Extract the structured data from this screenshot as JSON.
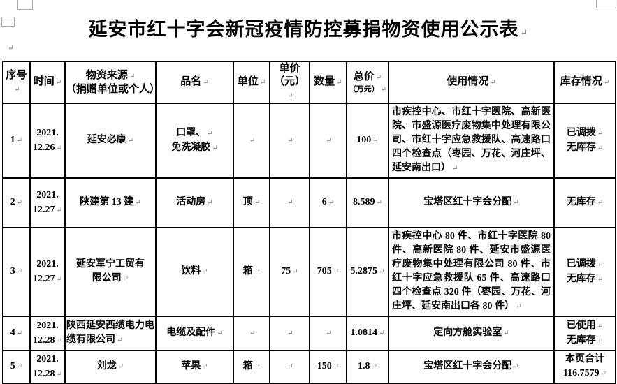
{
  "title": "延安市红十字会新冠疫情防控募捐物资使用公示表",
  "marks": {
    "paragraph": "↵"
  },
  "table": {
    "headers": [
      {
        "label": "序号"
      },
      {
        "label": "时间"
      },
      {
        "label": "物资来源",
        "sub": "（捐赠单位或个人）"
      },
      {
        "label": "品名"
      },
      {
        "label": "单位"
      },
      {
        "label": "单价",
        "sub": "（元）"
      },
      {
        "label": "数量"
      },
      {
        "label": "总价",
        "sub": "（万元）"
      },
      {
        "label": "使用情况"
      },
      {
        "label": "库存情况"
      }
    ],
    "rows": [
      {
        "cells": [
          "1",
          "2021.\n12.26",
          "延安必康",
          "口罩、\n免洗凝胶",
          "",
          "",
          "",
          "100",
          "市疾控中心、市红十字医院、高新医院、市盛源医疗废物集中处理有限公司、市红十字应急救援队、高速路口四个检查点（枣园、万花、河庄坪、延安南出口）",
          "已调拨\n无库存"
        ]
      },
      {
        "cells": [
          "2",
          "2021.\n12.27",
          "陕建第 13 建",
          "活动房",
          "顶",
          "",
          "6",
          "8.589",
          "宝塔区红十字会分配",
          "无库存"
        ]
      },
      {
        "cells": [
          "3",
          "2021.\n12.27",
          "延安军宁工贸有\n限公司",
          "饮料",
          "箱",
          "75",
          "705",
          "5.2875",
          "市疾控中心 80 件、市红十字医院 80 件、高新医院 80 件、延安市盛源医疗废物集中处理有限公司 80 件、市红十字应急救援队 65 件、高速路口四个检查点 320 件（枣园、万花、河庄坪、延安南出口各 80 件）",
          "已调拨\n无库存"
        ]
      },
      {
        "cells": [
          "4",
          "2021.\n12.28",
          "陕西延安西缆电力电\n缆有限公司",
          "电缆及配件",
          "",
          "",
          "",
          "1.0814",
          "定向方舱实验室",
          "已使用\n无库存"
        ]
      },
      {
        "cells": [
          "5",
          "2021.\n12.28",
          "刘龙",
          "苹果",
          "箱",
          "",
          "150",
          "1.8",
          "宝塔区红十字会分配",
          "本页合计\n116.7579"
        ]
      }
    ]
  }
}
